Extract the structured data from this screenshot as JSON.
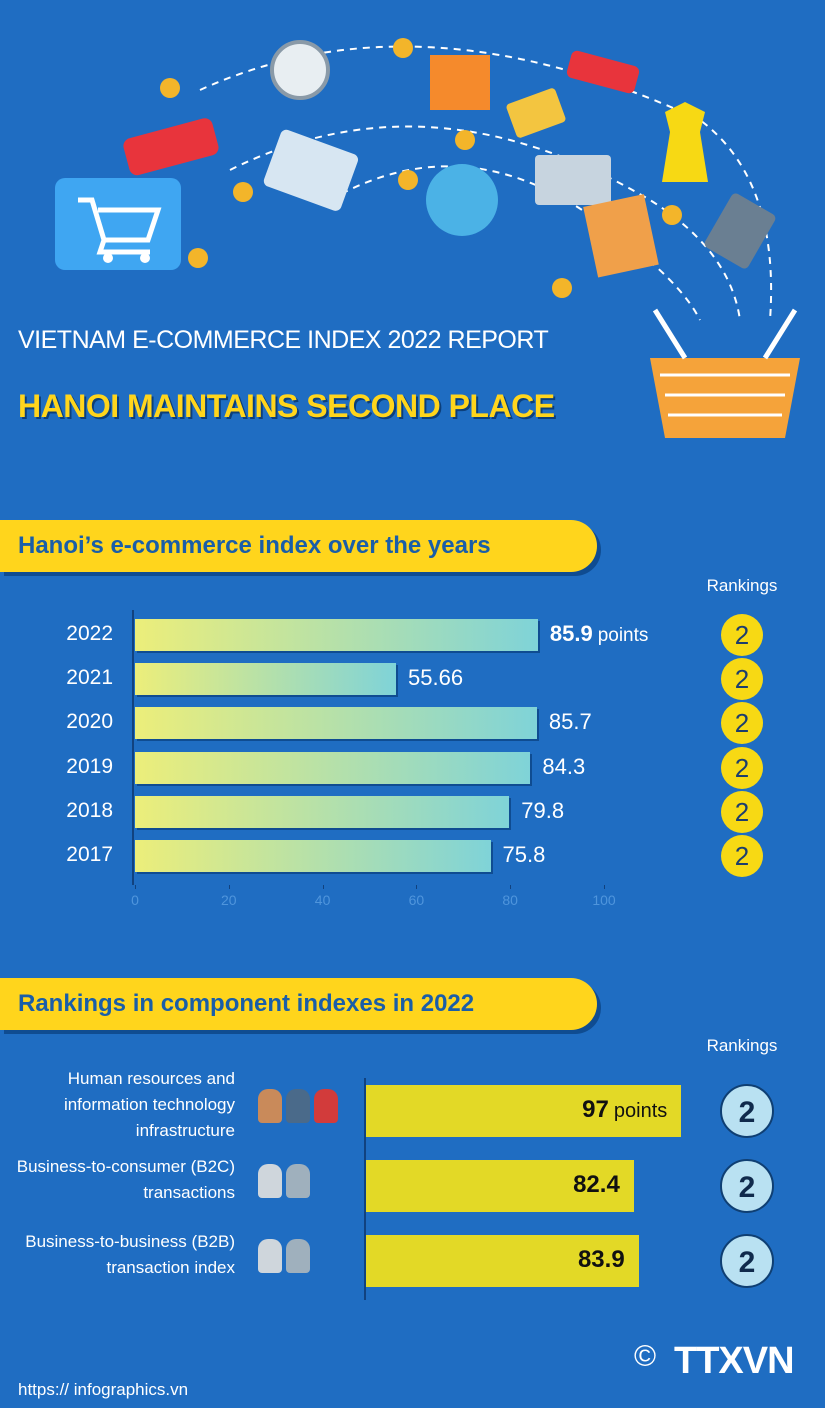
{
  "header": {
    "kicker": "VIETNAM E-COMMERCE INDEX 2022 REPORT",
    "title": "HANOI MAINTAINS SECOND PLACE"
  },
  "chart_data": [
    {
      "type": "bar",
      "orientation": "horizontal",
      "title": "Hanoi’s e-commerce index over the years",
      "categories": [
        "2022",
        "2021",
        "2020",
        "2019",
        "2018",
        "2017"
      ],
      "values": [
        85.9,
        55.66,
        85.7,
        84.3,
        79.8,
        75.8
      ],
      "unit": "points",
      "xlim": [
        0,
        100
      ],
      "xticks": [
        0,
        20,
        40,
        60,
        80,
        100
      ],
      "rankings_title": "Rankings",
      "rankings": [
        2,
        2,
        2,
        2,
        2,
        2
      ]
    },
    {
      "type": "bar",
      "orientation": "horizontal",
      "title": "Rankings in component indexes in 2022",
      "categories": [
        "Human resources and information technology infrastructure",
        "Business-to-consumer (B2C) transactions",
        "Business-to-business (B2B) transaction index"
      ],
      "values": [
        97,
        82.4,
        83.9
      ],
      "unit": "points",
      "color": "#e3d926",
      "rankings_title": "Rankings",
      "rankings": [
        2,
        2,
        2
      ]
    }
  ],
  "footer": {
    "url": "https:// infographics.vn",
    "copyright": "©",
    "logo": "TTXVN"
  }
}
